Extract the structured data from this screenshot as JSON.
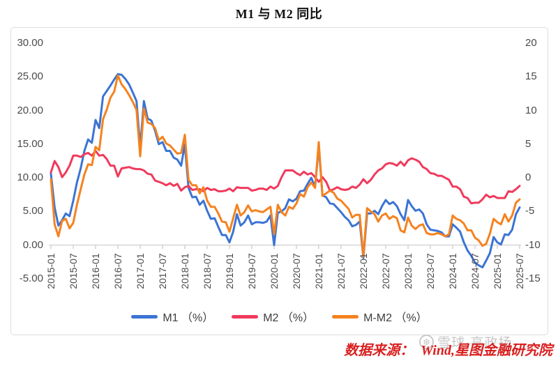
{
  "title": "M1 与 M2 同比",
  "source_note": "数据来源：  Wind,星图金融研究院",
  "watermark": {
    "logo": "xueqiu-snowball-icon",
    "text": "雪球·高政扬"
  },
  "colors": {
    "m1_blue": "#3b74d4",
    "m2_red": "#f03a5c",
    "m_m2_orange": "#f58220",
    "axis_text": "#4a4a4a",
    "axis_line": "#c9c9c9",
    "box_border": "#dddddd",
    "source_red": "#d92121",
    "watermark_gray": "#c6c6c6"
  },
  "chart_data": {
    "type": "line",
    "title": "M1 与 M2 同比",
    "frequency": "monthly",
    "x_start": "2015-01",
    "x_end": "2025-07",
    "grid": false,
    "legend_position": "bottom",
    "x_tick_labels": [
      "2015-01",
      "2015-07",
      "2016-01",
      "2016-07",
      "2017-01",
      "2017-07",
      "2018-01",
      "2018-07",
      "2019-01",
      "2019-07",
      "2020-01",
      "2020-07",
      "2021-01",
      "2021-07",
      "2022-01",
      "2022-07",
      "2023-01",
      "2023-07",
      "2024-01",
      "2024-07",
      "2025-01",
      "2025-07"
    ],
    "left_axis": {
      "range": [
        -5,
        30
      ],
      "values": [
        30,
        25,
        20,
        15,
        10,
        5,
        0,
        -5
      ],
      "labels": [
        "30.00",
        "25.00",
        "20.00",
        "15.00",
        "10.00",
        "5.00",
        "0.00",
        "-5.00"
      ]
    },
    "right_axis": {
      "range": [
        -15,
        20
      ],
      "values": [
        20,
        15,
        10,
        5,
        0,
        -5,
        -10,
        -15
      ],
      "labels": [
        "20",
        "15",
        "10",
        "5",
        "0",
        "-5",
        "-10",
        "-15"
      ]
    },
    "series": [
      {
        "name": "M1 （%）",
        "axis": "left",
        "color": "#3b74d4",
        "values": [
          10.6,
          5.6,
          2.9,
          3.7,
          4.7,
          4.3,
          6.6,
          9.3,
          11.4,
          14.0,
          15.7,
          15.2,
          18.6,
          17.4,
          22.1,
          22.9,
          23.7,
          24.6,
          25.4,
          25.3,
          24.7,
          23.9,
          22.7,
          21.4,
          14.5,
          21.4,
          18.8,
          18.5,
          17.0,
          15.0,
          15.3,
          14.0,
          14.0,
          13.0,
          12.7,
          11.8,
          15.0,
          8.5,
          7.1,
          7.2,
          6.0,
          6.6,
          5.1,
          3.9,
          4.0,
          2.7,
          1.5,
          1.5,
          0.4,
          2.0,
          4.6,
          2.9,
          3.4,
          4.4,
          3.1,
          3.4,
          3.4,
          3.3,
          3.5,
          4.4,
          0.0,
          4.8,
          5.0,
          5.5,
          6.8,
          6.5,
          6.9,
          8.0,
          8.1,
          9.1,
          10.0,
          8.6,
          14.7,
          7.4,
          7.1,
          6.2,
          6.1,
          5.5,
          4.9,
          4.2,
          3.7,
          2.8,
          3.0,
          3.5,
          -1.9,
          4.7,
          4.7,
          5.1,
          4.6,
          5.8,
          6.7,
          6.1,
          6.4,
          5.8,
          4.6,
          3.7,
          6.7,
          5.8,
          5.1,
          5.3,
          4.7,
          3.1,
          2.3,
          2.2,
          2.1,
          1.9,
          1.3,
          1.3,
          3.1,
          2.6,
          2.0,
          0.4,
          -0.8,
          -1.6,
          -2.6,
          -3.0,
          -3.3,
          -2.3,
          -1.2,
          1.2,
          0.4,
          0.1,
          1.6,
          1.5,
          2.3,
          4.6,
          5.6
        ]
      },
      {
        "name": "M2 （%）",
        "axis": "left",
        "color": "#f03a5c",
        "values": [
          10.8,
          12.5,
          11.6,
          10.1,
          10.8,
          11.8,
          13.3,
          13.3,
          13.1,
          13.5,
          13.7,
          13.3,
          14.0,
          13.3,
          13.4,
          12.8,
          11.8,
          11.8,
          10.2,
          11.4,
          11.5,
          11.6,
          11.4,
          11.3,
          11.3,
          11.1,
          10.6,
          10.5,
          9.6,
          9.4,
          9.2,
          8.9,
          9.2,
          8.8,
          9.1,
          8.1,
          8.6,
          8.8,
          8.2,
          8.3,
          8.3,
          8.0,
          8.5,
          8.2,
          8.3,
          8.0,
          8.0,
          8.1,
          8.4,
          8.0,
          8.6,
          8.5,
          8.5,
          8.5,
          8.1,
          8.2,
          8.4,
          8.4,
          8.2,
          8.7,
          8.4,
          8.8,
          10.1,
          11.1,
          11.1,
          11.1,
          10.7,
          10.4,
          10.9,
          10.5,
          10.7,
          10.1,
          9.4,
          10.1,
          9.4,
          8.1,
          8.3,
          8.6,
          8.3,
          8.2,
          8.3,
          8.7,
          8.5,
          9.0,
          9.8,
          9.2,
          9.7,
          10.5,
          11.1,
          11.4,
          12.0,
          12.2,
          12.1,
          11.8,
          12.4,
          11.8,
          12.6,
          12.9,
          12.7,
          12.4,
          11.6,
          11.3,
          10.7,
          10.6,
          10.3,
          10.3,
          10.0,
          9.7,
          8.7,
          8.7,
          8.3,
          7.2,
          7.0,
          6.2,
          6.3,
          6.3,
          6.8,
          7.5,
          7.1,
          7.3,
          7.0,
          7.0,
          7.0,
          8.0,
          7.9,
          8.3,
          8.8
        ]
      },
      {
        "name": "M-M2 （%）",
        "axis": "right",
        "color": "#f58220",
        "values": [
          -0.2,
          -6.9,
          -8.7,
          -6.4,
          -6.1,
          -7.5,
          -6.7,
          -4.0,
          -1.7,
          0.5,
          2.0,
          1.9,
          4.6,
          4.1,
          8.7,
          10.1,
          11.9,
          12.8,
          15.2,
          13.9,
          13.2,
          12.3,
          11.3,
          10.1,
          3.2,
          10.3,
          8.2,
          8.0,
          7.4,
          5.6,
          6.1,
          5.1,
          4.8,
          4.2,
          3.6,
          3.7,
          6.4,
          -0.3,
          -1.1,
          -1.1,
          -2.3,
          -1.4,
          -3.4,
          -4.3,
          -4.3,
          -5.3,
          -6.5,
          -6.6,
          -8.0,
          -6.0,
          -4.0,
          -5.6,
          -5.1,
          -4.1,
          -5.0,
          -4.8,
          -5.0,
          -5.1,
          -4.7,
          -4.3,
          -8.4,
          -4.0,
          -5.1,
          -5.6,
          -4.3,
          -4.6,
          -3.8,
          -2.4,
          -2.8,
          -1.4,
          -0.7,
          -1.5,
          5.3,
          -2.7,
          -2.3,
          -1.9,
          -2.2,
          -3.1,
          -3.4,
          -4.0,
          -4.6,
          -5.9,
          -5.5,
          -5.5,
          -11.7,
          -4.5,
          -5.0,
          -5.4,
          -6.5,
          -5.6,
          -5.3,
          -6.1,
          -5.7,
          -6.0,
          -7.8,
          -8.1,
          -5.9,
          -7.1,
          -7.6,
          -7.1,
          -6.9,
          -8.2,
          -8.4,
          -8.4,
          -8.2,
          -8.4,
          -8.7,
          -8.4,
          -5.6,
          -6.1,
          -6.3,
          -6.8,
          -7.8,
          -7.8,
          -8.9,
          -9.3,
          -10.1,
          -9.8,
          -8.3,
          -6.1,
          -6.6,
          -6.9,
          -5.4,
          -6.5,
          -5.6,
          -3.7,
          -3.2
        ]
      }
    ]
  }
}
